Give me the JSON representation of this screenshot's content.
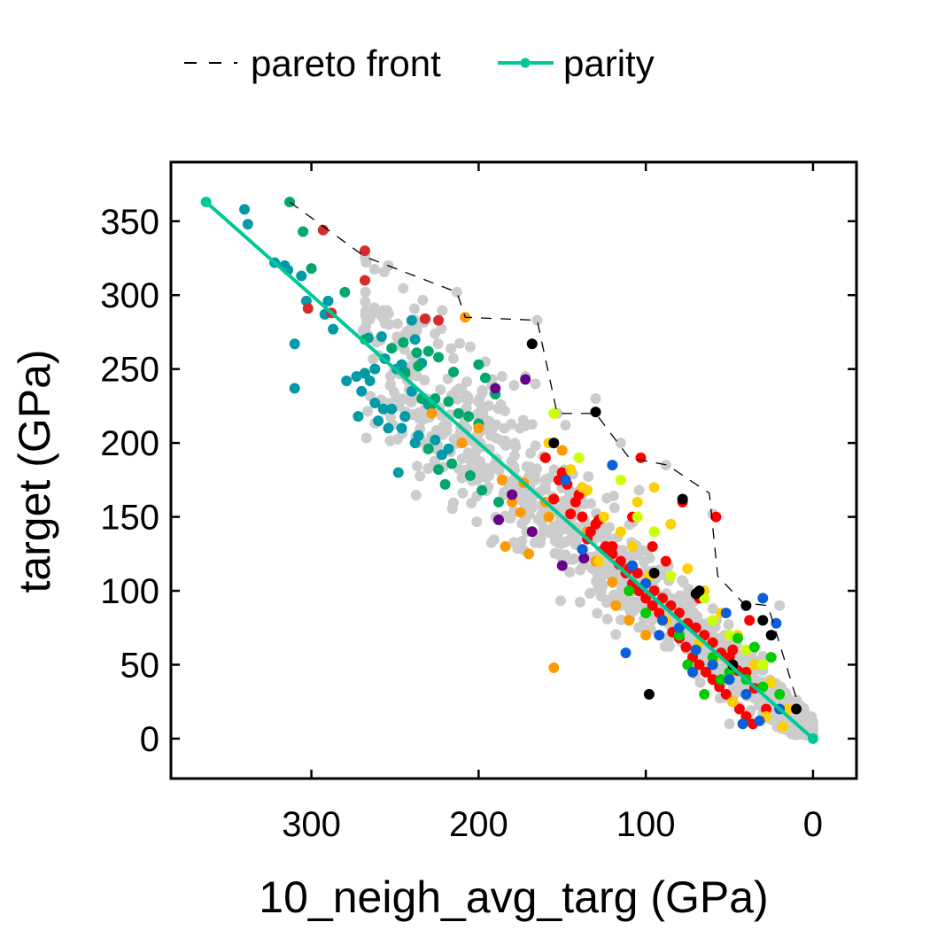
{
  "chart_data": {
    "type": "scatter",
    "title": "",
    "xlabel": "10_neigh_avg_targ (GPa)",
    "ylabel": "target (GPa)",
    "xlim": [
      384,
      -26
    ],
    "ylim": [
      -27,
      390
    ],
    "x_inverted": true,
    "grid": false,
    "legend_placement": "top",
    "x_ticks": [
      "300",
      "200",
      "100",
      "0"
    ],
    "x_tick_values": [
      300,
      200,
      100,
      0
    ],
    "y_ticks": [
      "0",
      "50",
      "100",
      "150",
      "200",
      "250",
      "300",
      "350"
    ],
    "y_tick_values": [
      0,
      50,
      100,
      150,
      200,
      250,
      300,
      350
    ],
    "legend": [
      {
        "label": "pareto front",
        "style": "dashed",
        "color": "#000000"
      },
      {
        "label": "parity",
        "style": "line-marker",
        "color": "#00c896"
      }
    ],
    "parity": {
      "x": [
        363,
        0
      ],
      "y": [
        363,
        0
      ],
      "color": "#00c896"
    },
    "pareto_front": {
      "x": [
        313,
        268,
        213,
        208,
        165,
        153,
        146,
        130,
        110,
        87,
        62,
        57,
        42,
        27,
        8
      ],
      "y": [
        363,
        326,
        302,
        285,
        283,
        220,
        220,
        220,
        190,
        185,
        166,
        110,
        92,
        90,
        20
      ],
      "color": "#000000"
    },
    "scatter_series": [
      {
        "name": "",
        "color": "#009aa8",
        "x": [
          340,
          338,
          322,
          316,
          306,
          314,
          310,
          310,
          303,
          292,
          287,
          290,
          273,
          268,
          262,
          256,
          249,
          246,
          266,
          258,
          272,
          262,
          257,
          240,
          238,
          234,
          240,
          252,
          260,
          254,
          244,
          246,
          248,
          238,
          236,
          226,
          218,
          222,
          230,
          244,
          279,
          270,
          265
        ],
        "y": [
          358,
          348,
          322,
          320,
          313,
          317,
          267,
          237,
          296,
          287,
          277,
          296,
          245,
          247,
          250,
          257,
          250,
          253,
          271,
          272,
          218,
          227,
          223,
          283,
          270,
          254,
          235,
          223,
          215,
          210,
          218,
          210,
          180,
          200,
          205,
          202,
          196,
          192,
          226,
          248,
          242,
          235,
          242
        ]
      },
      {
        "name": "",
        "color": "#00a86b",
        "x": [
          313,
          305,
          300,
          280,
          268,
          252,
          245,
          237,
          230,
          224,
          215,
          200,
          196,
          190,
          226,
          218,
          212,
          206,
          200,
          216,
          224,
          230,
          220,
          205,
          198,
          188,
          234,
          228,
          244,
          236
        ],
        "y": [
          363,
          343,
          318,
          302,
          270,
          264,
          268,
          261,
          262,
          258,
          248,
          253,
          244,
          233,
          230,
          228,
          220,
          218,
          213,
          186,
          182,
          196,
          172,
          178,
          168,
          160,
          230,
          226,
          247,
          252
        ]
      },
      {
        "name": "",
        "color": "#d62b2b",
        "x": [
          293,
          268,
          302,
          288,
          268,
          232,
          224
        ],
        "y": [
          344,
          330,
          291,
          288,
          310,
          284,
          283
        ]
      },
      {
        "name": "",
        "color": "#ff9a00",
        "x": [
          208,
          228,
          200,
          210,
          170,
          184,
          180,
          186,
          175,
          160,
          173,
          158,
          150,
          155,
          135,
          130,
          120,
          118,
          100,
          110
        ],
        "y": [
          285,
          220,
          210,
          200,
          125,
          130,
          160,
          175,
          153,
          160,
          173,
          150,
          195,
          48,
          140,
          120,
          106,
          90,
          70,
          80
        ]
      },
      {
        "name": "",
        "color": "#6a008a",
        "x": [
          190,
          172,
          188,
          150,
          137,
          168,
          180
        ],
        "y": [
          237,
          243,
          148,
          117,
          122,
          140,
          165
        ]
      },
      {
        "name": "",
        "color": "#ff0000",
        "x": [
          160,
          152,
          147,
          142,
          138,
          133,
          128,
          124,
          120,
          116,
          112,
          108,
          104,
          100,
          96,
          92,
          88,
          84,
          80,
          76,
          72,
          68,
          64,
          60,
          56,
          52,
          48,
          44,
          40,
          36,
          155,
          145,
          135,
          125,
          115,
          105,
          95,
          85,
          75,
          65,
          55,
          45,
          35,
          150,
          140,
          130,
          120,
          110,
          100,
          90,
          80,
          70,
          60,
          50,
          40,
          103,
          78,
          58,
          38,
          28,
          48,
          68,
          88,
          108,
          96
        ],
        "y": [
          190,
          175,
          172,
          160,
          150,
          140,
          148,
          130,
          125,
          118,
          112,
          105,
          100,
          95,
          90,
          85,
          80,
          72,
          68,
          62,
          55,
          50,
          45,
          40,
          35,
          30,
          25,
          20,
          15,
          10,
          162,
          152,
          135,
          128,
          120,
          112,
          100,
          90,
          78,
          70,
          58,
          46,
          34,
          180,
          165,
          145,
          130,
          115,
          105,
          95,
          85,
          75,
          65,
          55,
          45,
          190,
          160,
          150,
          80,
          20,
          60,
          95,
          120,
          150,
          130
        ]
      },
      {
        "name": "",
        "color": "#ffd000",
        "x": [
          158,
          145,
          135,
          125,
          115,
          105,
          95,
          85,
          75,
          65,
          55,
          45,
          35,
          25,
          15,
          128,
          108,
          88,
          68,
          48,
          28,
          18,
          138,
          98,
          58
        ],
        "y": [
          200,
          182,
          168,
          150,
          140,
          160,
          170,
          145,
          115,
          100,
          85,
          70,
          50,
          38,
          20,
          120,
          130,
          80,
          65,
          25,
          15,
          8,
          170,
          110,
          55
        ]
      },
      {
        "name": "",
        "color": "#ccff00",
        "x": [
          155,
          140,
          115,
          95,
          85,
          65,
          50,
          40,
          30,
          105,
          60
        ],
        "y": [
          220,
          190,
          175,
          140,
          110,
          95,
          70,
          60,
          50,
          150,
          80
        ]
      },
      {
        "name": "",
        "color": "#00cc00",
        "x": [
          110,
          100,
          90,
          80,
          70,
          60,
          50,
          40,
          30,
          20,
          45,
          35,
          25,
          55,
          65,
          75
        ],
        "y": [
          100,
          85,
          80,
          70,
          60,
          55,
          45,
          40,
          35,
          30,
          68,
          62,
          55,
          40,
          30,
          50
        ]
      },
      {
        "name": "",
        "color": "#0a5fd8",
        "x": [
          148,
          138,
          120,
          108,
          100,
          90,
          80,
          70,
          60,
          50,
          40,
          30,
          20,
          112,
          92,
          72,
          52,
          42,
          32,
          22
        ],
        "y": [
          175,
          128,
          185,
          117,
          105,
          80,
          75,
          60,
          50,
          40,
          30,
          95,
          20,
          58,
          70,
          45,
          85,
          10,
          12,
          78
        ]
      },
      {
        "name": "",
        "color": "#000000",
        "x": [
          168,
          130,
          95,
          78,
          70,
          40,
          30,
          25,
          10,
          155,
          68,
          48,
          98
        ],
        "y": [
          267,
          221,
          112,
          162,
          98,
          90,
          80,
          70,
          20,
          200,
          100,
          50,
          30
        ]
      }
    ],
    "gray_series": {
      "name": "",
      "color": "#cccccc",
      "count": 1100,
      "seed": 7,
      "x_range": [
        0,
        270
      ],
      "y_range": [
        0,
        330
      ],
      "highlights": {
        "x": [
          268,
          254,
          213,
          165,
          153,
          148,
          115,
          104,
          88,
          60,
          20,
          205,
          196,
          186,
          172,
          166,
          130,
          8,
          30,
          50
        ],
        "y": [
          326,
          320,
          302,
          283,
          220,
          212,
          200,
          168,
          185,
          152,
          90,
          265,
          255,
          245,
          245,
          240,
          230,
          20,
          15,
          10
        ]
      }
    }
  }
}
